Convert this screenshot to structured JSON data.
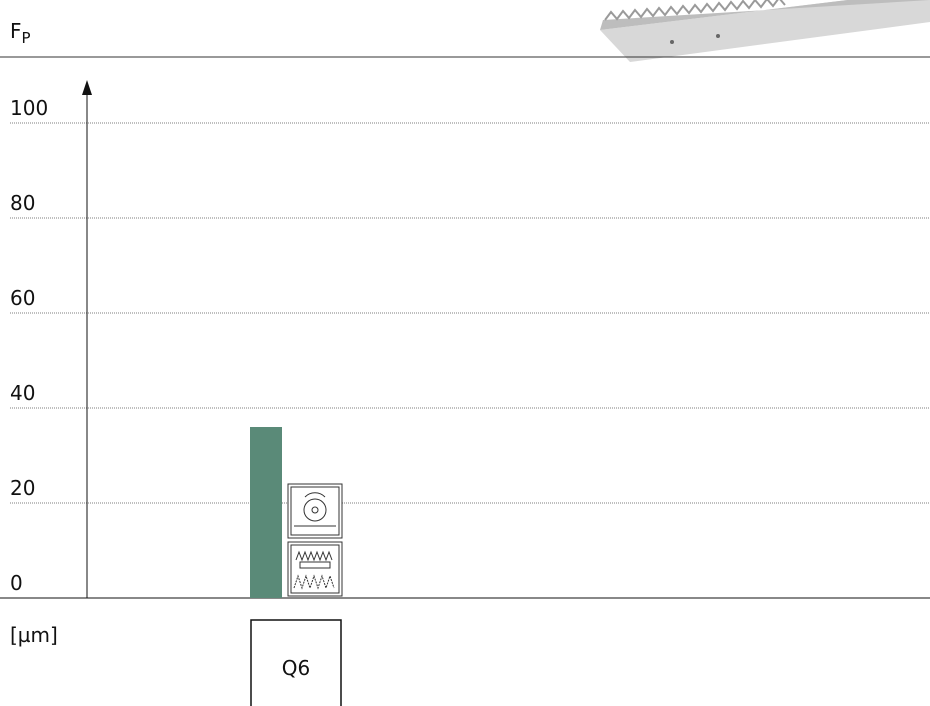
{
  "chart_data": {
    "type": "bar",
    "y_label": {
      "main": "F",
      "subscript": "P"
    },
    "unit_label": "[µm]",
    "categories": [
      "Q6"
    ],
    "values": [
      36
    ],
    "color": "#5a8a78",
    "ylim": [
      0,
      100
    ],
    "yticks": [
      0,
      20,
      40,
      60,
      80,
      100
    ],
    "grid": true
  }
}
